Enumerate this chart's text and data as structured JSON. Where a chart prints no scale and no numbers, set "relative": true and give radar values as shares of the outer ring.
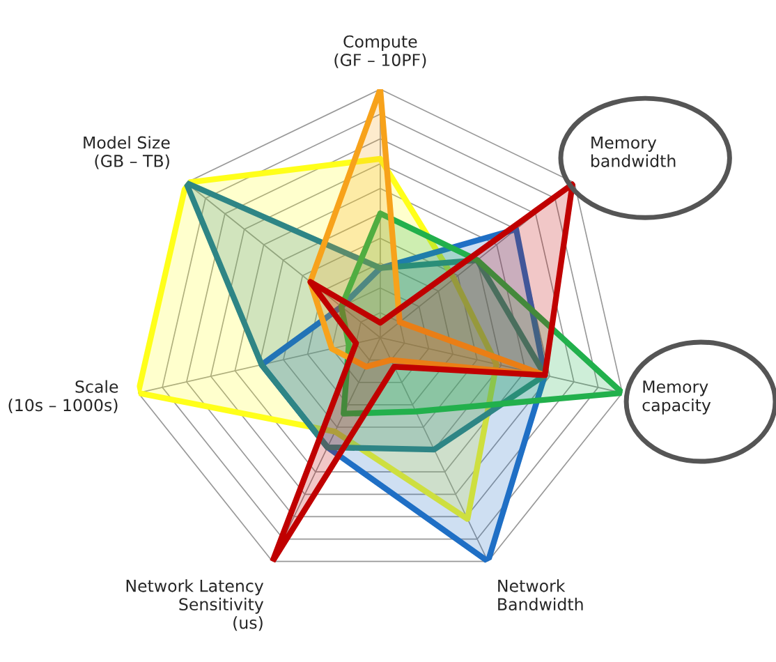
{
  "chart_data": {
    "type": "radar",
    "relative": true,
    "grid": true,
    "legend": false,
    "categories": [
      "Compute\n(GF – 10PF)",
      "Memory\nbandwidth",
      "Memory\ncapacity",
      "Network\nBandwidth",
      "Network Latency\nSensitivity\n(us)",
      "Scale\n(10s – 1000s)",
      "Model Size\n(GB – TB)"
    ],
    "series": [
      {
        "color": "#ffff1a",
        "values": [
          0.72,
          0.38,
          0.48,
          0.81,
          0.42,
          1.0,
          1.0
        ]
      },
      {
        "color": "#1f6fc5",
        "values": [
          0.28,
          0.7,
          0.68,
          1.0,
          0.49,
          0.49,
          0.2
        ]
      },
      {
        "color": "#2e8585",
        "values": [
          0.28,
          0.5,
          0.68,
          0.5,
          0.49,
          0.49,
          1.0
        ]
      },
      {
        "color": "#22b04c",
        "values": [
          0.5,
          0.5,
          1.0,
          0.33,
          0.34,
          0.13,
          0.2
        ]
      },
      {
        "color": "#f7a21b",
        "values": [
          1.0,
          0.1,
          0.68,
          0.1,
          0.13,
          0.2,
          0.36
        ]
      },
      {
        "color": "#c00000",
        "values": [
          0.06,
          0.99,
          0.68,
          0.13,
          1.0,
          0.1,
          0.36
        ]
      }
    ]
  }
}
